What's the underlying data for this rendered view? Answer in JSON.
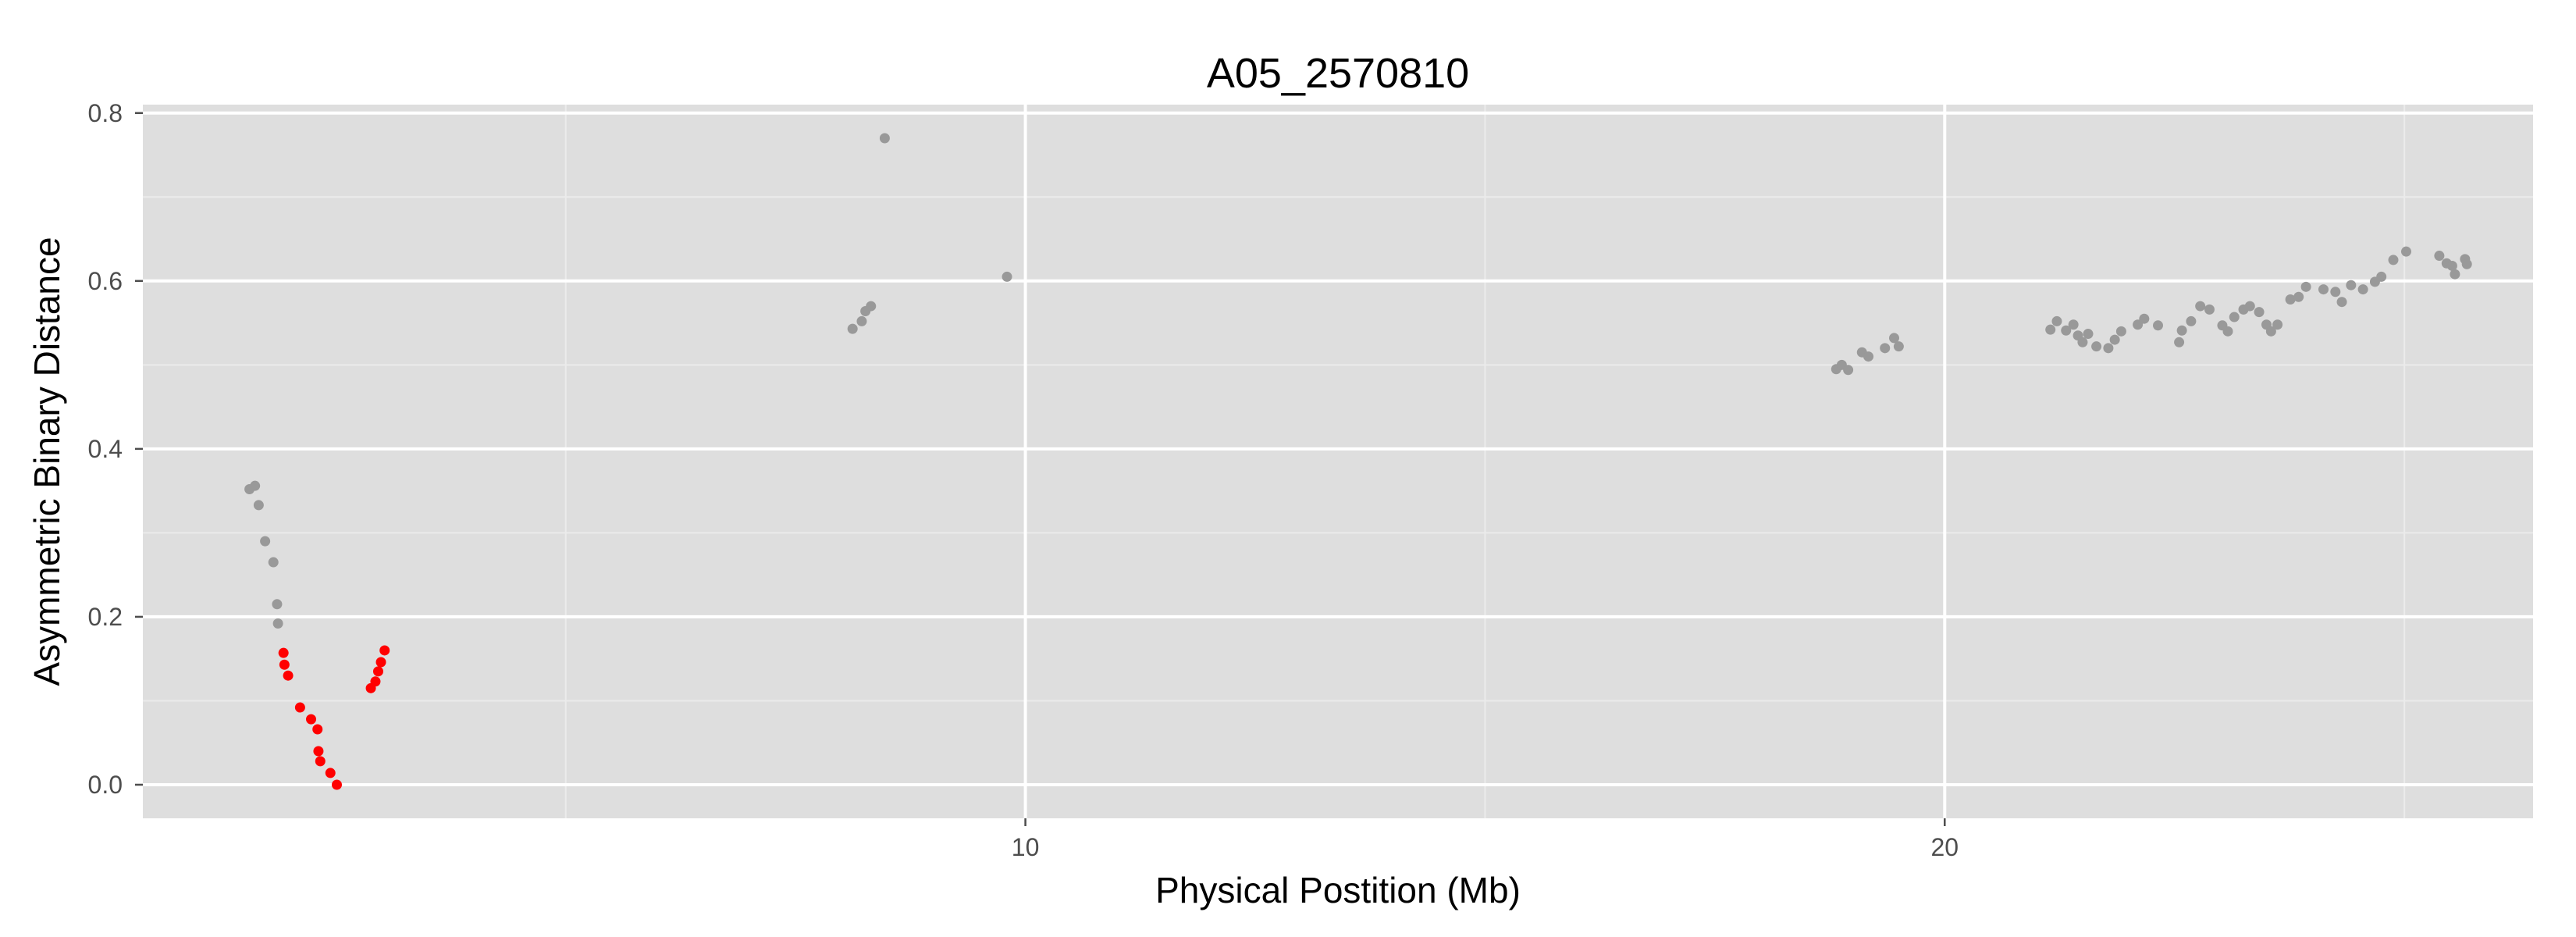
{
  "chart_data": {
    "type": "scatter",
    "title": "A05_2570810",
    "xlabel": "Physical Postition (Mb)",
    "ylabel": "Asymmetric Binary Distance",
    "xlim": [
      0.4,
      26.4
    ],
    "ylim": [
      -0.04,
      0.81
    ],
    "x_ticks": [
      10,
      20
    ],
    "y_ticks": [
      0.0,
      0.2,
      0.4,
      0.6,
      0.8
    ],
    "y_tick_labels": [
      "0.0",
      "0.2",
      "0.4",
      "0.6",
      "0.8"
    ],
    "grid": true,
    "colors": {
      "panel_background": "#dedede",
      "grid_major": "#ffffff",
      "grid_minor": "#ebebeb",
      "gray_point": "#999999",
      "red_point": "#ff0000"
    },
    "series": [
      {
        "color": "#999999",
        "points": [
          [
            1.56,
            0.352
          ],
          [
            1.62,
            0.356
          ],
          [
            1.66,
            0.333
          ],
          [
            1.73,
            0.29
          ],
          [
            1.82,
            0.265
          ],
          [
            1.86,
            0.215
          ],
          [
            1.87,
            0.192
          ],
          [
            8.12,
            0.543
          ],
          [
            8.22,
            0.552
          ],
          [
            8.26,
            0.564
          ],
          [
            8.32,
            0.57
          ],
          [
            8.47,
            0.77
          ],
          [
            9.8,
            0.605
          ],
          [
            18.82,
            0.495
          ],
          [
            18.88,
            0.5
          ],
          [
            18.95,
            0.494
          ],
          [
            19.1,
            0.515
          ],
          [
            19.17,
            0.51
          ],
          [
            19.35,
            0.52
          ],
          [
            19.45,
            0.532
          ],
          [
            19.5,
            0.522
          ],
          [
            21.15,
            0.542
          ],
          [
            21.22,
            0.552
          ],
          [
            21.32,
            0.541
          ],
          [
            21.4,
            0.548
          ],
          [
            21.45,
            0.535
          ],
          [
            21.5,
            0.527
          ],
          [
            21.56,
            0.537
          ],
          [
            21.65,
            0.522
          ],
          [
            21.78,
            0.52
          ],
          [
            21.85,
            0.53
          ],
          [
            21.92,
            0.54
          ],
          [
            22.1,
            0.548
          ],
          [
            22.17,
            0.555
          ],
          [
            22.32,
            0.547
          ],
          [
            22.55,
            0.527
          ],
          [
            22.58,
            0.541
          ],
          [
            22.68,
            0.552
          ],
          [
            22.78,
            0.57
          ],
          [
            22.88,
            0.566
          ],
          [
            23.02,
            0.547
          ],
          [
            23.08,
            0.54
          ],
          [
            23.15,
            0.557
          ],
          [
            23.25,
            0.566
          ],
          [
            23.32,
            0.57
          ],
          [
            23.42,
            0.563
          ],
          [
            23.5,
            0.548
          ],
          [
            23.55,
            0.54
          ],
          [
            23.62,
            0.548
          ],
          [
            23.76,
            0.578
          ],
          [
            23.85,
            0.581
          ],
          [
            23.93,
            0.593
          ],
          [
            24.12,
            0.59
          ],
          [
            24.25,
            0.587
          ],
          [
            24.32,
            0.575
          ],
          [
            24.42,
            0.595
          ],
          [
            24.55,
            0.59
          ],
          [
            24.68,
            0.599
          ],
          [
            24.75,
            0.605
          ],
          [
            24.88,
            0.625
          ],
          [
            25.02,
            0.635
          ],
          [
            25.38,
            0.63
          ],
          [
            25.46,
            0.621
          ],
          [
            25.52,
            0.618
          ],
          [
            25.55,
            0.608
          ],
          [
            25.66,
            0.626
          ],
          [
            25.68,
            0.62
          ]
        ]
      },
      {
        "color": "#ff0000",
        "points": [
          [
            1.93,
            0.157
          ],
          [
            1.94,
            0.143
          ],
          [
            1.98,
            0.13
          ],
          [
            2.11,
            0.092
          ],
          [
            2.23,
            0.078
          ],
          [
            2.3,
            0.066
          ],
          [
            2.31,
            0.04
          ],
          [
            2.33,
            0.028
          ],
          [
            2.44,
            0.014
          ],
          [
            2.51,
            0.0
          ],
          [
            2.88,
            0.115
          ],
          [
            2.93,
            0.123
          ],
          [
            2.96,
            0.135
          ],
          [
            2.99,
            0.146
          ],
          [
            3.03,
            0.16
          ]
        ]
      }
    ]
  }
}
